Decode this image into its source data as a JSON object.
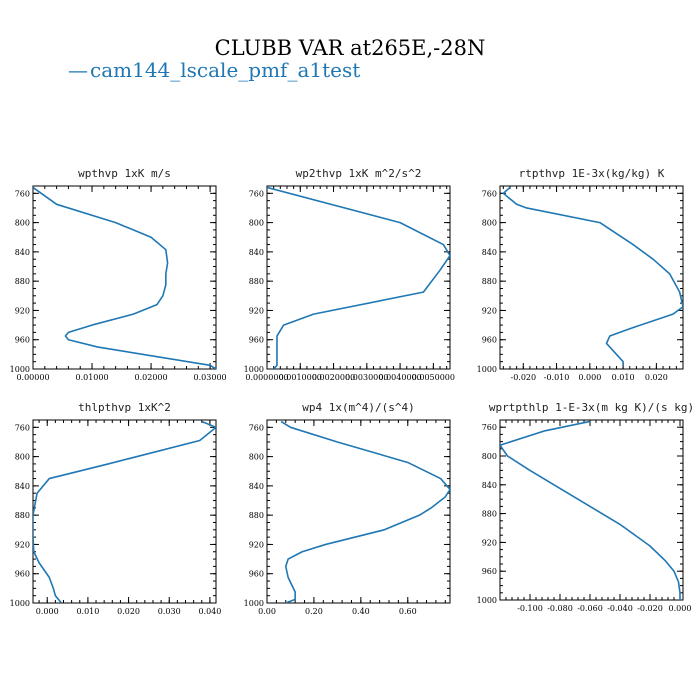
{
  "figure": {
    "title": "CLUBB VAR at265E,-28N",
    "legend": [
      {
        "symbol": "—",
        "label": "cam144_lscale_pmf_a1test",
        "color": "#1f77b4"
      }
    ]
  },
  "chart_data": [
    {
      "type": "line",
      "title": "wpthvp  1xK m/s",
      "xlim": [
        0,
        0.031
      ],
      "ylim": [
        1000,
        750
      ],
      "xticks": [
        0,
        0.01,
        0.02,
        0.03
      ],
      "xtick_labels": [
        "0.00000",
        "0.01000",
        "0.02000",
        "0.03000"
      ],
      "yticks": [
        760,
        800,
        840,
        880,
        920,
        960,
        1000
      ],
      "ytick_labels": [
        "760",
        "800",
        "840",
        "880",
        "920",
        "960",
        "1000"
      ],
      "series": [
        {
          "color": "#1f77b4",
          "x": [
            0.0,
            0.004,
            0.014,
            0.02,
            0.0225,
            0.0228,
            0.0225,
            0.0225,
            0.022,
            0.021,
            0.017,
            0.01,
            0.006,
            0.0055,
            0.006,
            0.011,
            0.03,
            0.031
          ],
          "y": [
            752,
            775,
            800,
            820,
            837,
            855,
            870,
            885,
            900,
            912,
            925,
            940,
            950,
            955,
            960,
            970,
            995,
            1000
          ]
        }
      ]
    },
    {
      "type": "line",
      "title": "wp2thvp  1xK m^2/s^2",
      "xlim": [
        0,
        0.0055
      ],
      "ylim": [
        1000,
        750
      ],
      "xticks": [
        0,
        0.001,
        0.002,
        0.003,
        0.004,
        0.005
      ],
      "xtick_labels": [
        "0.0000000",
        "0.0010000",
        "0.0020000",
        "0.0030000",
        "0.0040000",
        "0.0050000"
      ],
      "yticks": [
        760,
        800,
        840,
        880,
        920,
        960,
        1000
      ],
      "ytick_labels": [
        "760",
        "800",
        "840",
        "880",
        "920",
        "960",
        "1000"
      ],
      "series": [
        {
          "color": "#1f77b4",
          "x": [
            0.0,
            0.004,
            0.0053,
            0.0055,
            0.0052,
            0.0047,
            0.0014,
            0.0005,
            0.0003,
            0.0003,
            0.0003,
            0.0003,
            0.0002
          ],
          "y": [
            752,
            800,
            830,
            845,
            865,
            895,
            925,
            940,
            955,
            965,
            980,
            995,
            1000
          ]
        }
      ]
    },
    {
      "type": "line",
      "title": "rtpthvp  1E-3x(kg/kg) K",
      "xlim": [
        -0.027,
        0.028
      ],
      "ylim": [
        1000,
        750
      ],
      "xticks": [
        -0.02,
        -0.01,
        0.0,
        0.01,
        0.02
      ],
      "xtick_labels": [
        "-0.020",
        "-0.010",
        "0.000",
        "0.010",
        "0.020"
      ],
      "yticks": [
        760,
        800,
        840,
        880,
        920,
        960,
        1000
      ],
      "ytick_labels": [
        "760",
        "800",
        "840",
        "880",
        "920",
        "960",
        "1000"
      ],
      "series": [
        {
          "color": "#1f77b4",
          "x": [
            -0.024,
            -0.026,
            -0.022,
            -0.019,
            0.003,
            0.013,
            0.019,
            0.024,
            0.027,
            0.028,
            0.025,
            0.012,
            0.006,
            0.005,
            0.007,
            0.01,
            0.01
          ],
          "y": [
            752,
            760,
            775,
            780,
            800,
            830,
            850,
            870,
            895,
            915,
            925,
            945,
            955,
            965,
            975,
            990,
            995
          ]
        }
      ]
    },
    {
      "type": "line",
      "title": "thlpthvp  1xK^2",
      "xlim": [
        -0.0035,
        0.0415
      ],
      "ylim": [
        1000,
        750
      ],
      "xticks": [
        0.0,
        0.01,
        0.02,
        0.03,
        0.04
      ],
      "xtick_labels": [
        "0.000",
        "0.010",
        "0.020",
        "0.030",
        "0.040"
      ],
      "yticks": [
        760,
        800,
        840,
        880,
        920,
        960,
        1000
      ],
      "ytick_labels": [
        "760",
        "800",
        "840",
        "880",
        "920",
        "960",
        "1000"
      ],
      "series": [
        {
          "color": "#1f77b4",
          "x": [
            0.038,
            0.0415,
            0.0375,
            0.015,
            0.0005,
            -0.0025,
            -0.0035,
            -0.0035,
            -0.0033,
            -0.002,
            0.0005,
            0.0015,
            0.002,
            0.0035
          ],
          "y": [
            752,
            760,
            778,
            810,
            830,
            850,
            880,
            910,
            930,
            945,
            965,
            980,
            990,
            1000
          ]
        }
      ]
    },
    {
      "type": "line",
      "title": "wp4   1x(m^4)/(s^4)",
      "xlim": [
        0,
        0.78
      ],
      "ylim": [
        1000,
        750
      ],
      "xticks": [
        0.0,
        0.2,
        0.4,
        0.6
      ],
      "xtick_labels": [
        "0.00",
        "0.20",
        "0.40",
        "0.60"
      ],
      "yticks": [
        760,
        800,
        840,
        880,
        920,
        960,
        1000
      ],
      "ytick_labels": [
        "760",
        "800",
        "840",
        "880",
        "920",
        "960",
        "1000"
      ],
      "series": [
        {
          "color": "#1f77b4",
          "x": [
            0.06,
            0.1,
            0.3,
            0.6,
            0.74,
            0.78,
            0.76,
            0.7,
            0.65,
            0.5,
            0.25,
            0.15,
            0.09,
            0.08,
            0.09,
            0.12,
            0.12,
            0.08
          ],
          "y": [
            752,
            760,
            780,
            808,
            830,
            845,
            855,
            870,
            880,
            900,
            920,
            930,
            940,
            950,
            965,
            985,
            995,
            1000
          ]
        }
      ]
    },
    {
      "type": "line",
      "title": "wprtpthlp  1-E-3x(m kg K)/(s kg)",
      "xlim": [
        -0.12,
        0.002
      ],
      "ylim": [
        1000,
        750
      ],
      "xticks": [
        -0.1,
        -0.08,
        -0.06,
        -0.04,
        -0.02,
        0.0
      ],
      "xtick_labels": [
        "-0.100",
        "-0.080",
        "-0.060",
        "-0.040",
        "-0.020",
        "0.000"
      ],
      "yticks": [
        760,
        800,
        840,
        880,
        920,
        960,
        1000
      ],
      "ytick_labels": [
        "760",
        "800",
        "840",
        "880",
        "920",
        "960",
        "1000"
      ],
      "series": [
        {
          "color": "#1f77b4",
          "x": [
            -0.06,
            -0.09,
            -0.12,
            -0.115,
            -0.1,
            -0.08,
            -0.04,
            -0.02,
            -0.01,
            -0.004,
            -0.001,
            0.0,
            0.0
          ],
          "y": [
            752,
            765,
            785,
            800,
            820,
            845,
            895,
            925,
            945,
            960,
            975,
            990,
            1000
          ]
        }
      ]
    }
  ]
}
